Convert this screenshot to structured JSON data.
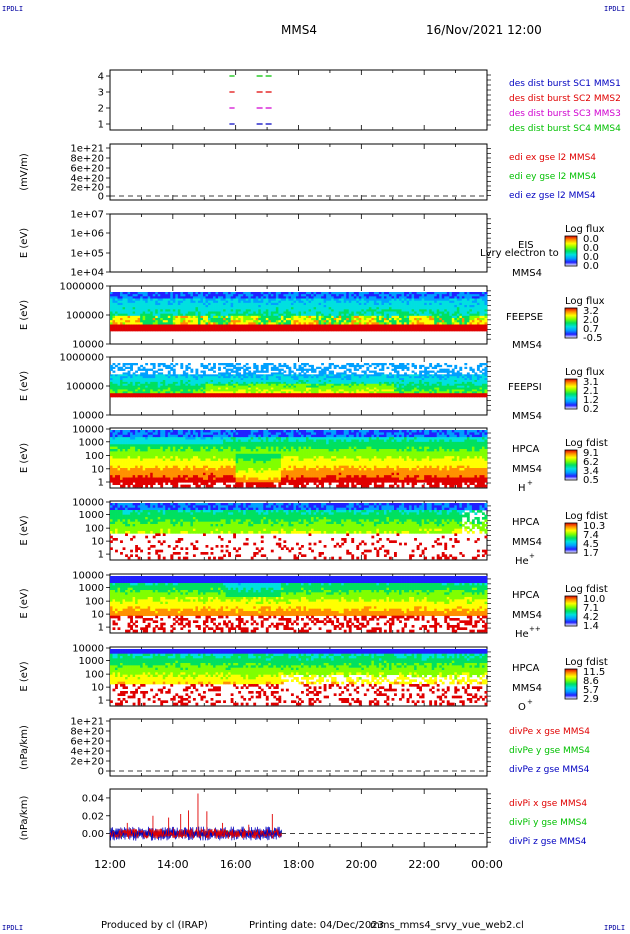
{
  "header": {
    "logo_tl": "IPDLI",
    "logo_tr": "IPDLI",
    "logo_bl": "IPDLI",
    "logo_br": "IPDLI",
    "spacecraft": "MMS4",
    "date": "16/Nov/2021 12:00"
  },
  "footer": {
    "produced_by": "Produced by cl (IRAP)",
    "printing_date": "Printing date: 04/Dec/2023",
    "script": "mms_mms4_srvy_vue_web2.cl"
  },
  "colors": {
    "red": "#e00000",
    "green": "#00c000",
    "blue": "#0000c0",
    "magenta": "#d000d0"
  },
  "colorbar_stops": [
    "#ffffff",
    "#2020ff",
    "#00a0ff",
    "#00e0e0",
    "#00e060",
    "#80ff00",
    "#ffff00",
    "#ff9000",
    "#e00000"
  ],
  "time_axis": {
    "start": "12:00",
    "end": "00:00",
    "tick_labels": [
      "12:00",
      "14:00",
      "16:00",
      "18:00",
      "20:00",
      "22:00",
      "00:00"
    ]
  },
  "chart_data": [
    {
      "type": "scatter",
      "panel": "burst",
      "yticks": [
        "4",
        "3",
        "2",
        "1"
      ],
      "series": [
        {
          "name": "des dist burst SC1 MMS1",
          "y": 1,
          "color": "#0000c0",
          "segments": [
            [
              "15:48",
              "15:58"
            ],
            [
              "16:40",
              "17:12"
            ]
          ]
        },
        {
          "name": "des dist burst SC2 MMS2",
          "y": 3,
          "color": "#e00000",
          "segments": [
            [
              "15:48",
              "15:58"
            ],
            [
              "16:40",
              "17:12"
            ]
          ]
        },
        {
          "name": "des dist burst SC3 MMS3",
          "y": 2,
          "color": "#d000d0",
          "segments": [
            [
              "15:48",
              "15:58"
            ],
            [
              "16:40",
              "17:12"
            ]
          ]
        },
        {
          "name": "des dist burst SC4 MMS4",
          "y": 4,
          "color": "#00c000",
          "segments": [
            [
              "15:48",
              "15:58"
            ],
            [
              "16:40",
              "17:12"
            ]
          ]
        }
      ]
    },
    {
      "type": "line",
      "panel": "edi",
      "ylabel": "(mV/m)",
      "yticks": [
        "1e+21",
        "8e+20",
        "6e+20",
        "4e+20",
        "2e+20",
        "0"
      ],
      "series": [
        {
          "name": "edi ex gse l2 MMS4",
          "color": "#e00000"
        },
        {
          "name": "edi ey gse l2 MMS4",
          "color": "#00c000"
        },
        {
          "name": "edi ez gse l2 MMS4",
          "color": "#0000c0"
        }
      ]
    },
    {
      "type": "heatmap",
      "panel": "eis",
      "ylabel": "E (eV)",
      "yticks": [
        "1e+07",
        "1e+06",
        "1e+05",
        "1e+04"
      ],
      "instrument": "EIS",
      "label2": "MMS4",
      "overlay_text": "Lvry electron to",
      "cbar_title": "Log flux",
      "cbar_ticks": [
        "0.0",
        "0.0",
        "0.0",
        "0.0"
      ]
    },
    {
      "type": "heatmap",
      "panel": "feepse",
      "ylabel": "E (eV)",
      "yticks": [
        "1000000",
        "100000",
        "10000"
      ],
      "instrument": "FEEPSE",
      "label2": "MMS4",
      "cbar_title": "Log flux",
      "cbar_ticks": [
        "3.2",
        "2.0",
        "0.7",
        "-0.5"
      ]
    },
    {
      "type": "heatmap",
      "panel": "feepsi",
      "ylabel": "E (eV)",
      "yticks": [
        "1000000",
        "100000",
        "10000"
      ],
      "instrument": "FEEPSI",
      "label2": "MMS4",
      "cbar_title": "Log flux",
      "cbar_ticks": [
        "3.1",
        "2.1",
        "1.2",
        "0.2"
      ]
    },
    {
      "type": "heatmap",
      "panel": "hpca_h",
      "ylabel": "E (eV)",
      "yticks": [
        "10000",
        "1000",
        "100",
        "10",
        "1"
      ],
      "instrument": "HPCA",
      "label2": "MMS4",
      "species": "H",
      "species_sup": "+",
      "cbar_title": "Log fdist",
      "cbar_ticks": [
        "9.1",
        "6.2",
        "3.4",
        "0.5"
      ]
    },
    {
      "type": "heatmap",
      "panel": "hpca_he",
      "ylabel": "E (eV)",
      "yticks": [
        "10000",
        "1000",
        "100",
        "10",
        "1"
      ],
      "instrument": "HPCA",
      "label2": "MMS4",
      "species": "He",
      "species_sup": "+",
      "cbar_title": "Log fdist",
      "cbar_ticks": [
        "10.3",
        "7.4",
        "4.5",
        "1.7"
      ]
    },
    {
      "type": "heatmap",
      "panel": "hpca_hepp",
      "ylabel": "E (eV)",
      "yticks": [
        "10000",
        "1000",
        "100",
        "10",
        "1"
      ],
      "instrument": "HPCA",
      "label2": "MMS4",
      "species": "He",
      "species_sup": "++",
      "cbar_title": "Log fdist",
      "cbar_ticks": [
        "10.0",
        "7.1",
        "4.2",
        "1.4"
      ]
    },
    {
      "type": "heatmap",
      "panel": "hpca_o",
      "ylabel": "E (eV)",
      "yticks": [
        "10000",
        "1000",
        "100",
        "10",
        "1"
      ],
      "instrument": "HPCA",
      "label2": "MMS4",
      "species": "O",
      "species_sup": "+",
      "cbar_title": "Log fdist",
      "cbar_ticks": [
        "11.5",
        "8.6",
        "5.7",
        "2.9"
      ]
    },
    {
      "type": "line",
      "panel": "divpe",
      "ylabel": "(nPa/km)",
      "yticks": [
        "1e+21",
        "8e+20",
        "6e+20",
        "4e+20",
        "2e+20",
        "0"
      ],
      "series": [
        {
          "name": "divPe x gse MMS4",
          "color": "#e00000"
        },
        {
          "name": "divPe y gse MMS4",
          "color": "#00c000"
        },
        {
          "name": "divPe z gse MMS4",
          "color": "#0000c0"
        }
      ]
    },
    {
      "type": "line",
      "panel": "divpi",
      "ylabel": "(nPa/km)",
      "yticks": [
        "0.04",
        "0.02",
        "0.00"
      ],
      "ylim": [
        -0.015,
        0.05
      ],
      "data_end": "17:28",
      "series": [
        {
          "name": "divPi x gse MMS4",
          "color": "#e00000",
          "typical": 0.003,
          "spikes": [
            [
              "12:33",
              0.012
            ],
            [
              "13:22",
              0.02
            ],
            [
              "13:52",
              0.018
            ],
            [
              "14:15",
              0.022
            ],
            [
              "14:30",
              0.026
            ],
            [
              "14:48",
              0.045
            ],
            [
              "15:05",
              0.025
            ],
            [
              "15:35",
              0.012
            ],
            [
              "16:25",
              0.01
            ],
            [
              "17:10",
              0.022
            ]
          ]
        },
        {
          "name": "divPi y gse MMS4",
          "color": "#00c000",
          "typical": 0.002
        },
        {
          "name": "divPi z gse MMS4",
          "color": "#0000c0",
          "typical": 0.004
        }
      ]
    }
  ]
}
